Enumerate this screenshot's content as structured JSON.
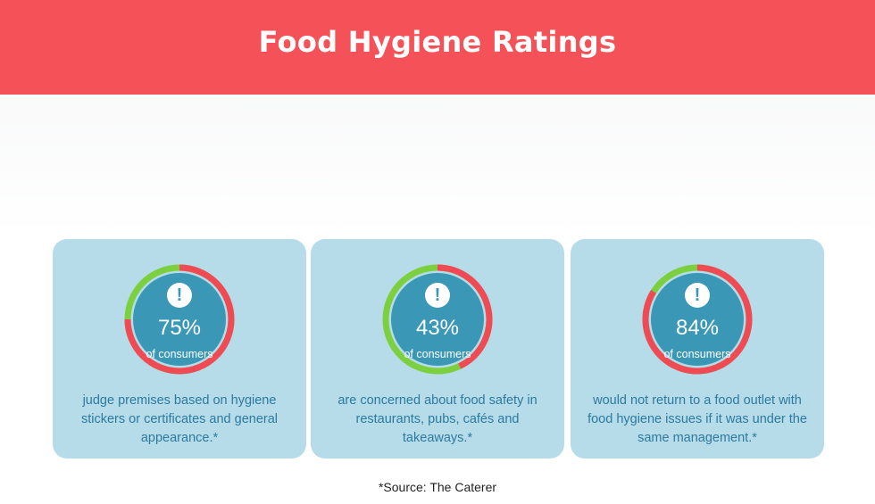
{
  "title": "Food Hygiene Ratings",
  "colors": {
    "header": "#f45158",
    "card": "#b6dce9",
    "disc": "#3a97b6",
    "ring_red": "#f04a55",
    "ring_green": "#7ccf3f",
    "text": "#2c7aa0"
  },
  "cards": [
    {
      "percent_label": "75%",
      "sub_label": "of consumers",
      "description": "judge premises based on hygiene stickers or certificates and general appearance.*",
      "icon": "exclamation-icon"
    },
    {
      "percent_label": "43%",
      "sub_label": "of consumers",
      "description": "are concerned about food safety in restaurants, pubs, cafés and takeaways.*",
      "icon": "exclamation-icon"
    },
    {
      "percent_label": "84%",
      "sub_label": "of consumers",
      "description": "would not return to a food outlet with food hygiene issues if it was under the same management.*",
      "icon": "exclamation-icon"
    }
  ],
  "chart_data": {
    "type": "pie",
    "title": "Food Hygiene Ratings",
    "series": [
      {
        "name": "judge premises based on hygiene stickers or certificates and general appearance",
        "value": 75,
        "unit": "%"
      },
      {
        "name": "are concerned about food safety in restaurants, pubs, cafés and takeaways",
        "value": 43,
        "unit": "%"
      },
      {
        "name": "would not return to a food outlet with food hygiene issues if it was under the same management",
        "value": 84,
        "unit": "%"
      }
    ]
  },
  "source": "*Source: The Caterer"
}
